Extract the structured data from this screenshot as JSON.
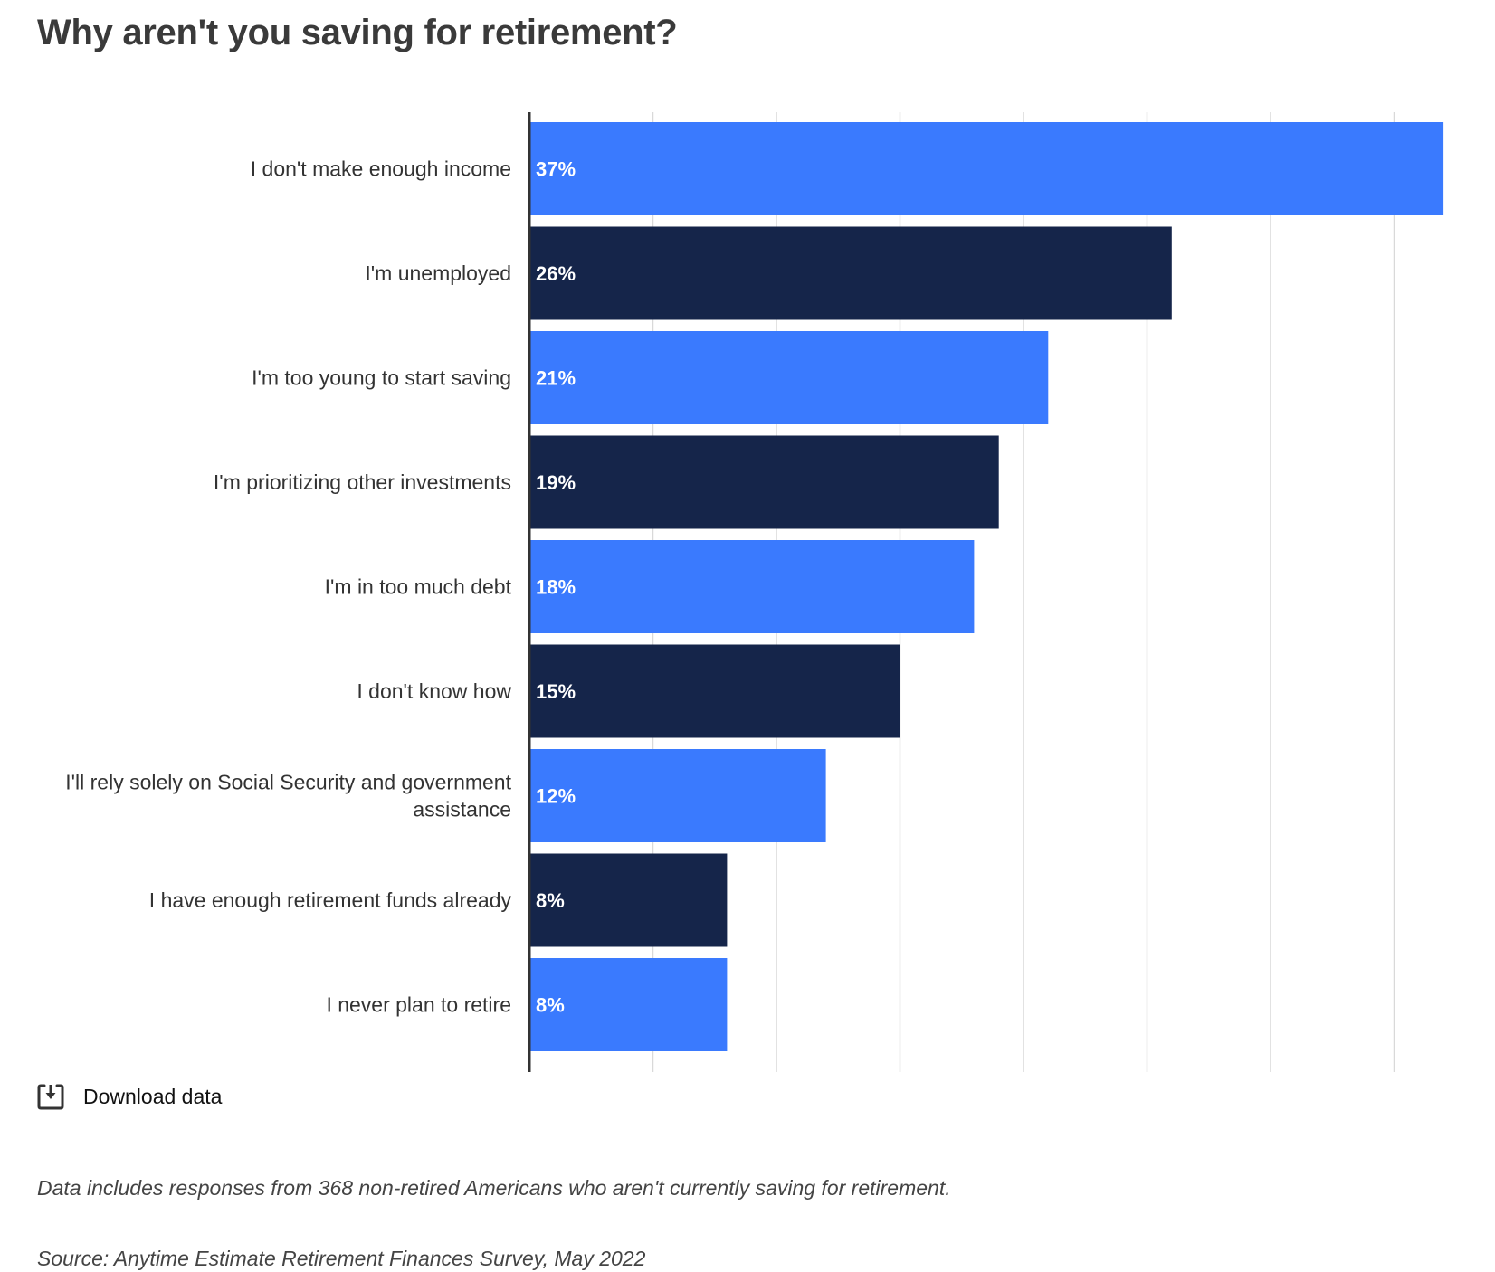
{
  "title": "Why aren't you saving for retirement?",
  "chart_data": {
    "type": "bar",
    "orientation": "horizontal",
    "title": "Why aren't you saving for retirement?",
    "categories": [
      [
        "I don't make enough income"
      ],
      [
        "I'm unemployed"
      ],
      [
        "I'm too young to start saving"
      ],
      [
        "I'm prioritizing other investments"
      ],
      [
        "I'm in too much debt"
      ],
      [
        "I don't know how"
      ],
      [
        "I'll rely solely on Social Security and government",
        "assistance"
      ],
      [
        "I have enough retirement funds already"
      ],
      [
        "I never plan to retire"
      ]
    ],
    "values": [
      37,
      26,
      21,
      19,
      18,
      15,
      12,
      8,
      8
    ],
    "value_labels": [
      "37%",
      "26%",
      "21%",
      "19%",
      "18%",
      "15%",
      "12%",
      "8%",
      "8%"
    ],
    "bar_colors": [
      "#3a7afe",
      "#15254a",
      "#3a7afe",
      "#15254a",
      "#3a7afe",
      "#15254a",
      "#3a7afe",
      "#15254a",
      "#3a7afe"
    ],
    "xlim": [
      0,
      35
    ],
    "x_gridlines": [
      5,
      10,
      15,
      20,
      25,
      30,
      35
    ],
    "grid": true,
    "xlabel": "",
    "ylabel": ""
  },
  "download": {
    "label": "Download data",
    "icon": "download-icon"
  },
  "note": "Data includes responses from 368 non-retired Americans who aren't currently saving for retirement.",
  "source": "Source: Anytime Estimate Retirement Finances Survey, May 2022",
  "colors": {
    "accent": "#3a7afe",
    "dark": "#15254a",
    "grid": "#d9d9d9",
    "axis": "#333333"
  }
}
